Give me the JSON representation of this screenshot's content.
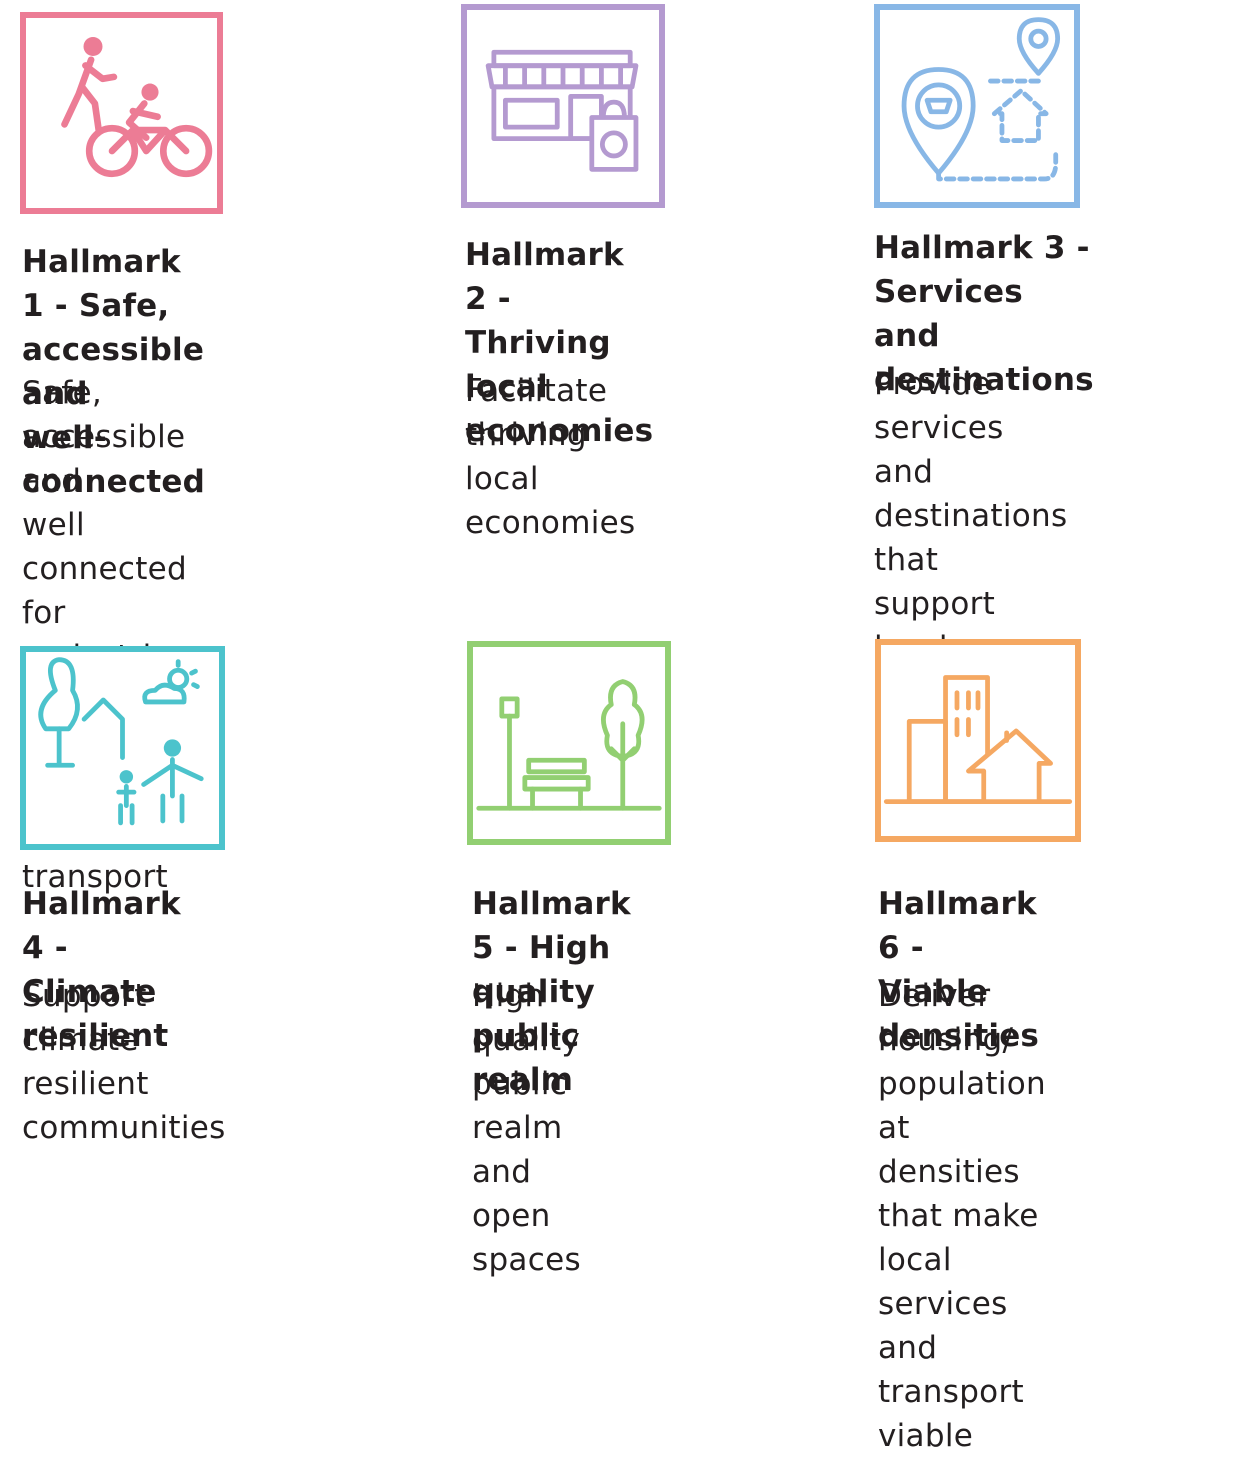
{
  "colors": {
    "pink": "#ec7c95",
    "purple": "#b49ad0",
    "blue": "#88b7e6",
    "teal": "#4cc3cc",
    "green": "#92cf72",
    "orange": "#f5a862",
    "text": "#231f20"
  },
  "hallmarks": [
    {
      "icon": "walking-cycling-icon",
      "title": "Hallmark 1 - Safe,\naccessible and\nwell-connected",
      "description": "Safe, accessible and\nwell connected for\npedestrians and\ncyclists to optimise\nactive transport"
    },
    {
      "icon": "shopfront-icon",
      "title": "Hallmark 2 -\nThriving local\neconomies",
      "description": "Facilitate thriving\nlocal economies"
    },
    {
      "icon": "map-destinations-icon",
      "title": "Hallmark 3 -\nServices and\ndestinations",
      "description": "Provide services\nand destinations\nthat support local\nliving"
    },
    {
      "icon": "climate-family-icon",
      "title": "Hallmark 4 -\nClimate resilient",
      "description": "Support climate\nresilient communities"
    },
    {
      "icon": "park-bench-icon",
      "title": "Hallmark 5 - High\nquality public realm",
      "description": "High quality public\nrealm and open\nspaces"
    },
    {
      "icon": "buildings-house-icon",
      "title": "Hallmark 6 -\nViable densities",
      "description": "Deliver housing/\npopulation at\ndensities that make\nlocal services and\ntransport viable"
    }
  ]
}
